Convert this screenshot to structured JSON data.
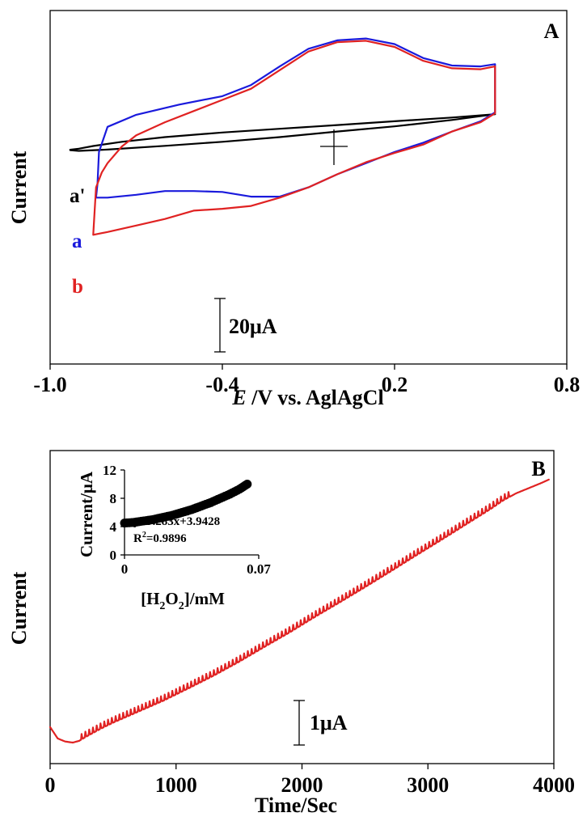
{
  "chart_data": [
    {
      "panel": "A",
      "type": "line",
      "ylabel": "Current",
      "xlabel": {
        "italic": "E",
        "rest": " /V vs. AglAgCl"
      },
      "xlim": [
        -1.0,
        0.8
      ],
      "xticks": [
        "-1.0",
        "-0.4",
        "0.2",
        "0.8"
      ],
      "xtick_values": [
        -1.0,
        -0.4,
        0.2,
        0.8
      ],
      "grid": false,
      "scale_bar": {
        "label": "20μA",
        "value_uA": 20
      },
      "series": [
        {
          "name": "a'",
          "color": "#000000",
          "forward": [
            [
              -0.93,
              -1.8
            ],
            [
              -0.9,
              -1.2
            ],
            [
              -0.85,
              0.2
            ],
            [
              -0.75,
              2.5
            ],
            [
              -0.6,
              5.0
            ],
            [
              -0.4,
              7.5
            ],
            [
              -0.2,
              9.5
            ],
            [
              0.0,
              11.5
            ],
            [
              0.2,
              13.5
            ],
            [
              0.4,
              15.5
            ],
            [
              0.55,
              17.3
            ]
          ],
          "reverse": [
            [
              0.55,
              17.3
            ],
            [
              0.4,
              14.2
            ],
            [
              0.2,
              10.8
            ],
            [
              0.0,
              8.0
            ],
            [
              -0.2,
              5.0
            ],
            [
              -0.4,
              2.5
            ],
            [
              -0.6,
              0.3
            ],
            [
              -0.8,
              -1.7
            ],
            [
              -0.9,
              -2.4
            ],
            [
              -0.93,
              -2.0
            ]
          ]
        },
        {
          "name": "a",
          "color": "#1a1adc",
          "forward": [
            [
              -0.84,
              -27.5
            ],
            [
              -0.835,
              -20.0
            ],
            [
              -0.83,
              -3.0
            ],
            [
              -0.8,
              10.5
            ],
            [
              -0.7,
              17.0
            ],
            [
              -0.55,
              22.5
            ],
            [
              -0.4,
              27.0
            ],
            [
              -0.3,
              33.0
            ],
            [
              -0.2,
              43.0
            ],
            [
              -0.1,
              52.5
            ],
            [
              0.0,
              57.0
            ],
            [
              0.1,
              58.0
            ],
            [
              0.2,
              55.0
            ],
            [
              0.3,
              47.5
            ],
            [
              0.4,
              43.5
            ],
            [
              0.5,
              43.0
            ],
            [
              0.55,
              44.2
            ]
          ],
          "reverse": [
            [
              0.55,
              18.3
            ],
            [
              0.5,
              13.5
            ],
            [
              0.4,
              8.0
            ],
            [
              0.3,
              2.0
            ],
            [
              0.2,
              -3.0
            ],
            [
              0.1,
              -9.0
            ],
            [
              0.0,
              -15.0
            ],
            [
              -0.1,
              -22.0
            ],
            [
              -0.2,
              -27.0
            ],
            [
              -0.3,
              -27.0
            ],
            [
              -0.4,
              -24.5
            ],
            [
              -0.5,
              -24.0
            ],
            [
              -0.6,
              -24.0
            ],
            [
              -0.7,
              -26.0
            ],
            [
              -0.8,
              -27.5
            ],
            [
              -0.84,
              -27.5
            ]
          ]
        },
        {
          "name": "b",
          "color": "#e02222",
          "forward": [
            [
              -0.85,
              -47.5
            ],
            [
              -0.845,
              -35.0
            ],
            [
              -0.84,
              -22.0
            ],
            [
              -0.82,
              -14.0
            ],
            [
              -0.8,
              -9.0
            ],
            [
              -0.75,
              0.0
            ],
            [
              -0.7,
              6.0
            ],
            [
              -0.6,
              13.0
            ],
            [
              -0.5,
              19.0
            ],
            [
              -0.4,
              25.0
            ],
            [
              -0.3,
              31.0
            ],
            [
              -0.2,
              41.0
            ],
            [
              -0.1,
              51.0
            ],
            [
              0.0,
              56.0
            ],
            [
              0.1,
              56.8
            ],
            [
              0.2,
              53.5
            ],
            [
              0.3,
              46.0
            ],
            [
              0.4,
              42.0
            ],
            [
              0.5,
              41.5
            ],
            [
              0.55,
              43.0
            ]
          ],
          "reverse": [
            [
              0.55,
              17.8
            ],
            [
              0.5,
              13.0
            ],
            [
              0.4,
              8.0
            ],
            [
              0.3,
              1.0
            ],
            [
              0.2,
              -3.5
            ],
            [
              0.1,
              -8.5
            ],
            [
              0.0,
              -15.0
            ],
            [
              -0.1,
              -22.0
            ],
            [
              -0.2,
              -27.5
            ],
            [
              -0.3,
              -32.0
            ],
            [
              -0.4,
              -33.5
            ],
            [
              -0.5,
              -34.5
            ],
            [
              -0.6,
              -39.0
            ],
            [
              -0.7,
              -42.5
            ],
            [
              -0.8,
              -46.0
            ],
            [
              -0.85,
              -47.5
            ]
          ]
        }
      ],
      "labels": [
        {
          "text": "a'",
          "color": "#000000"
        },
        {
          "text": "a",
          "color": "#1a1adc"
        },
        {
          "text": "b",
          "color": "#e02222"
        }
      ]
    },
    {
      "panel": "B",
      "type": "line",
      "ylabel": "Current",
      "xlabel": "Time/Sec",
      "xlim": [
        0,
        4000
      ],
      "xticks": [
        "0",
        "1000",
        "2000",
        "3000",
        "4000"
      ],
      "xtick_values": [
        0,
        1000,
        2000,
        3000,
        4000
      ],
      "grid": false,
      "scale_bar": {
        "label": "1μA",
        "value_uA": 1
      },
      "series": [
        {
          "name": "",
          "color": "#e02222",
          "points": [
            [
              0,
              0.45
            ],
            [
              60,
              0.12
            ],
            [
              120,
              0.03
            ],
            [
              180,
              0.0
            ],
            [
              230,
              0.05
            ],
            [
              300,
              0.2
            ],
            [
              400,
              0.4
            ],
            [
              500,
              0.58
            ],
            [
              700,
              0.9
            ],
            [
              900,
              1.22
            ],
            [
              1100,
              1.58
            ],
            [
              1300,
              1.95
            ],
            [
              1500,
              2.35
            ],
            [
              1700,
              2.78
            ],
            [
              1900,
              3.2
            ],
            [
              2100,
              3.65
            ],
            [
              2300,
              4.08
            ],
            [
              2500,
              4.52
            ],
            [
              2700,
              4.97
            ],
            [
              2900,
              5.43
            ],
            [
              3100,
              5.88
            ],
            [
              3300,
              6.34
            ],
            [
              3500,
              6.8
            ],
            [
              3600,
              7.05
            ],
            [
              3700,
              7.25
            ],
            [
              3800,
              7.4
            ],
            [
              3900,
              7.55
            ],
            [
              3960,
              7.65
            ]
          ],
          "spike_interval_sec": 30,
          "spike_start_sec": 250,
          "spike_end_sec": 3650
        }
      ],
      "inset": {
        "type": "scatter",
        "xlabel_parts": [
          "[H",
          "2",
          "O",
          "2",
          "]/mM"
        ],
        "ylabel": "Current/μA",
        "xlim": [
          0,
          0.07
        ],
        "ylim": [
          0,
          12
        ],
        "xticks": [
          "0",
          "0.07"
        ],
        "xtick_values": [
          0,
          0.07
        ],
        "yticks": [
          "0",
          "4",
          "8",
          "12"
        ],
        "ytick_values": [
          0,
          4,
          8,
          12
        ],
        "fit": {
          "slope": 9.283,
          "intercept": 3.9428
        },
        "equation_text": "y=9.283x+3.9428",
        "r2_parts": [
          "R",
          "2",
          "=0.9896"
        ],
        "points": [
          [
            0.0,
            4.5
          ],
          [
            0.005,
            4.6
          ],
          [
            0.01,
            4.8
          ],
          [
            0.015,
            5.0
          ],
          [
            0.02,
            5.3
          ],
          [
            0.025,
            5.6
          ],
          [
            0.03,
            6.0
          ],
          [
            0.035,
            6.4
          ],
          [
            0.04,
            6.9
          ],
          [
            0.045,
            7.4
          ],
          [
            0.05,
            8.0
          ],
          [
            0.055,
            8.6
          ],
          [
            0.06,
            9.3
          ],
          [
            0.064,
            10.0
          ]
        ]
      }
    }
  ]
}
